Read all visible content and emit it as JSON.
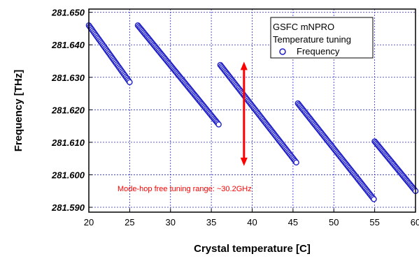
{
  "chart_data": {
    "type": "scatter",
    "xlabel": "Crystal temperature [C]",
    "ylabel": "Frequency [THz]",
    "xlim": [
      20,
      60
    ],
    "ylim": [
      281.5885,
      281.651
    ],
    "x_ticks": [
      "20",
      "25",
      "30",
      "35",
      "40",
      "45",
      "50",
      "55",
      "60"
    ],
    "y_ticks": [
      "281.650",
      "281.640",
      "281.630",
      "281.620",
      "281.610",
      "281.600",
      "281.590"
    ],
    "x_tick_values": [
      20,
      25,
      30,
      35,
      40,
      45,
      50,
      55,
      60
    ],
    "y_tick_values": [
      281.65,
      281.64,
      281.63,
      281.62,
      281.61,
      281.6,
      281.59
    ],
    "grid": true,
    "legend": {
      "position": "top-right",
      "lines": [
        "GSFC mNPRO",
        "Temperature tuning"
      ],
      "entry": "Frequency"
    },
    "series": [
      {
        "name": "Frequency",
        "color": "#1f1fc8",
        "segments": [
          {
            "x_start": 20.0,
            "y_start": 281.646,
            "x_end": 25.0,
            "y_end": 281.6285
          },
          {
            "x_start": 26.0,
            "y_start": 281.646,
            "x_end": 35.9,
            "y_end": 281.6155
          },
          {
            "x_start": 36.1,
            "y_start": 281.6338,
            "x_end": 45.4,
            "y_end": 281.6038
          },
          {
            "x_start": 45.6,
            "y_start": 281.622,
            "x_end": 54.9,
            "y_end": 281.5925
          },
          {
            "x_start": 55.0,
            "y_start": 281.6103,
            "x_end": 60.0,
            "y_end": 281.595
          }
        ]
      }
    ],
    "annotation": {
      "text": "Mode-hop free tuning range: ~30.2GHz",
      "color": "#ff0000",
      "arrow_x": 39,
      "arrow_y_top": 281.6348,
      "arrow_y_bottom": 281.6027
    }
  }
}
